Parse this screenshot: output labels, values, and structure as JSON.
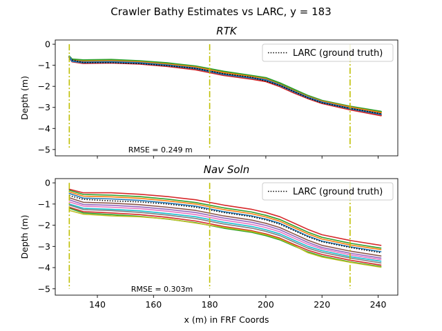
{
  "suptitle": "Crawler Bathy Estimates vs LARC, y = 183",
  "chart_data": [
    {
      "type": "line",
      "title": "RTK",
      "xlabel": "",
      "ylabel": "Depth (m)",
      "xlim": [
        125,
        247
      ],
      "ylim": [
        -5.3,
        0.2
      ],
      "xticks": [
        140,
        160,
        180,
        200,
        220,
        240
      ],
      "yticks": [
        0,
        -1,
        -2,
        -3,
        -4,
        -5
      ],
      "xtick_labels_visible": false,
      "vertical_lines": [
        130,
        180,
        230
      ],
      "vertical_line_range": [
        -5,
        0
      ],
      "vertical_line_color": "#bfbf00",
      "annotation": {
        "text": "RMSE = 0.249 m",
        "x": 151,
        "y": -5.0
      },
      "legend": {
        "entries": [
          "LARC (ground truth)"
        ],
        "position": "upper right"
      },
      "ground_truth": {
        "name": "LARC (ground truth)",
        "x": [
          131,
          135,
          145,
          155,
          165,
          175,
          185,
          195,
          200,
          205,
          210,
          215,
          220,
          230,
          241
        ],
        "y": [
          -0.75,
          -0.87,
          -0.88,
          -0.92,
          -1.02,
          -1.15,
          -1.4,
          -1.57,
          -1.75,
          -1.95,
          -2.25,
          -2.55,
          -2.78,
          -3.05,
          -3.3
        ]
      },
      "series": [
        {
          "color": "#2ca02c",
          "x": [
            130,
            131,
            135,
            145,
            155,
            165,
            175,
            185,
            195,
            200,
            205,
            210,
            215,
            220,
            230,
            241
          ],
          "y": [
            -0.58,
            -0.72,
            -0.76,
            -0.74,
            -0.8,
            -0.9,
            -1.05,
            -1.3,
            -1.5,
            -1.6,
            -1.85,
            -2.15,
            -2.45,
            -2.68,
            -2.96,
            -3.2
          ]
        },
        {
          "color": "#ff7f0e",
          "x": [
            130,
            131,
            135,
            145,
            155,
            165,
            175,
            185,
            195,
            200,
            205,
            210,
            215,
            220,
            230,
            241
          ],
          "y": [
            -0.6,
            -0.78,
            -0.82,
            -0.8,
            -0.85,
            -0.96,
            -1.1,
            -1.36,
            -1.55,
            -1.66,
            -1.92,
            -2.22,
            -2.5,
            -2.72,
            -3.0,
            -3.26
          ]
        },
        {
          "color": "#d62728",
          "x": [
            130,
            131,
            135,
            145,
            155,
            165,
            175,
            185,
            195,
            200,
            205,
            210,
            215,
            220,
            230,
            241
          ],
          "y": [
            -0.62,
            -0.82,
            -0.9,
            -0.88,
            -0.93,
            -1.04,
            -1.2,
            -1.47,
            -1.65,
            -1.76,
            -2.0,
            -2.3,
            -2.57,
            -2.8,
            -3.1,
            -3.38
          ]
        },
        {
          "color": "#1f77b4",
          "x": [
            130,
            131,
            135,
            145,
            155,
            165,
            175,
            185,
            195,
            200,
            205,
            210,
            215,
            220,
            230,
            241
          ],
          "y": [
            -0.6,
            -0.8,
            -0.86,
            -0.84,
            -0.89,
            -1.0,
            -1.15,
            -1.42,
            -1.6,
            -1.7,
            -1.95,
            -2.25,
            -2.53,
            -2.76,
            -3.05,
            -3.32
          ]
        }
      ]
    },
    {
      "type": "line",
      "title": "Nav Soln",
      "xlabel": "x (m) in FRF Coords",
      "ylabel": "Depth (m)",
      "xlim": [
        125,
        247
      ],
      "ylim": [
        -5.3,
        0.2
      ],
      "xticks": [
        140,
        160,
        180,
        200,
        220,
        240
      ],
      "yticks": [
        0,
        -1,
        -2,
        -3,
        -4,
        -5
      ],
      "xtick_labels_visible": true,
      "vertical_lines": [
        130,
        180,
        230
      ],
      "vertical_line_range": [
        -5,
        0
      ],
      "vertical_line_color": "#bfbf00",
      "annotation": {
        "text": "RMSE = 0.303m",
        "x": 152,
        "y": -5.0
      },
      "legend": {
        "entries": [
          "LARC (ground truth)"
        ],
        "position": "upper right"
      },
      "ground_truth": {
        "name": "LARC (ground truth)",
        "x": [
          130,
          135,
          145,
          155,
          165,
          175,
          185,
          195,
          200,
          205,
          210,
          215,
          220,
          230,
          241
        ],
        "y": [
          -0.6,
          -0.78,
          -0.85,
          -0.9,
          -1.0,
          -1.15,
          -1.4,
          -1.6,
          -1.75,
          -1.95,
          -2.25,
          -2.55,
          -2.78,
          -3.05,
          -3.3
        ]
      },
      "series": [
        {
          "color": "#d62728",
          "x": [
            130,
            135,
            145,
            155,
            165,
            175,
            185,
            195,
            200,
            205,
            210,
            215,
            220,
            230,
            241
          ],
          "y": [
            -0.3,
            -0.47,
            -0.47,
            -0.54,
            -0.65,
            -0.8,
            -1.05,
            -1.25,
            -1.4,
            -1.6,
            -1.9,
            -2.2,
            -2.45,
            -2.72,
            -2.95
          ]
        },
        {
          "color": "#2ca02c",
          "x": [
            130,
            135,
            145,
            155,
            165,
            175,
            185,
            195,
            200,
            205,
            210,
            215,
            220,
            230,
            241
          ],
          "y": [
            -0.35,
            -0.55,
            -0.58,
            -0.65,
            -0.77,
            -0.93,
            -1.18,
            -1.38,
            -1.53,
            -1.73,
            -2.03,
            -2.33,
            -2.57,
            -2.85,
            -3.08
          ]
        },
        {
          "color": "#ff7f0e",
          "x": [
            130,
            135,
            145,
            155,
            165,
            175,
            185,
            195,
            200,
            205,
            210,
            215,
            220,
            230,
            241
          ],
          "y": [
            -0.42,
            -0.63,
            -0.66,
            -0.73,
            -0.85,
            -1.0,
            -1.26,
            -1.46,
            -1.61,
            -1.81,
            -2.11,
            -2.41,
            -2.65,
            -2.93,
            -3.15
          ]
        },
        {
          "color": "#1f77b4",
          "x": [
            130,
            135,
            145,
            155,
            165,
            175,
            185,
            195,
            200,
            205,
            210,
            215,
            220,
            230,
            241
          ],
          "y": [
            -0.5,
            -0.72,
            -0.76,
            -0.83,
            -0.95,
            -1.1,
            -1.36,
            -1.56,
            -1.71,
            -1.91,
            -2.21,
            -2.51,
            -2.75,
            -3.02,
            -3.25
          ]
        },
        {
          "color": "#8c564b",
          "x": [
            130,
            135,
            145,
            155,
            165,
            175,
            185,
            195,
            200,
            205,
            210,
            215,
            220,
            230,
            241
          ],
          "y": [
            -0.7,
            -0.92,
            -0.96,
            -1.03,
            -1.15,
            -1.3,
            -1.56,
            -1.76,
            -1.91,
            -2.11,
            -2.41,
            -2.71,
            -2.95,
            -3.22,
            -3.45
          ]
        },
        {
          "color": "#9467bd",
          "x": [
            130,
            135,
            145,
            155,
            165,
            175,
            185,
            195,
            200,
            205,
            210,
            215,
            220,
            230,
            241
          ],
          "y": [
            -0.8,
            -1.02,
            -1.06,
            -1.13,
            -1.25,
            -1.4,
            -1.66,
            -1.86,
            -2.01,
            -2.21,
            -2.51,
            -2.81,
            -3.05,
            -3.32,
            -3.55
          ]
        },
        {
          "color": "#e377c2",
          "x": [
            130,
            135,
            145,
            155,
            165,
            175,
            185,
            195,
            200,
            205,
            210,
            215,
            220,
            230,
            241
          ],
          "y": [
            -0.9,
            -1.1,
            -1.15,
            -1.22,
            -1.34,
            -1.5,
            -1.76,
            -1.96,
            -2.11,
            -2.31,
            -2.61,
            -2.9,
            -3.12,
            -3.4,
            -3.62
          ]
        },
        {
          "color": "#17becf",
          "x": [
            130,
            135,
            145,
            155,
            165,
            175,
            185,
            195,
            200,
            205,
            210,
            215,
            220,
            230,
            241
          ],
          "y": [
            -1.0,
            -1.2,
            -1.25,
            -1.32,
            -1.45,
            -1.6,
            -1.86,
            -2.06,
            -2.21,
            -2.41,
            -2.71,
            -3.0,
            -3.2,
            -3.48,
            -3.7
          ]
        },
        {
          "color": "#7f7f7f",
          "x": [
            130,
            135,
            145,
            155,
            165,
            175,
            185,
            195,
            200,
            205,
            210,
            215,
            220,
            230,
            241
          ],
          "y": [
            -1.05,
            -1.26,
            -1.31,
            -1.39,
            -1.52,
            -1.68,
            -1.94,
            -2.14,
            -2.29,
            -2.49,
            -2.79,
            -3.08,
            -3.28,
            -3.55,
            -3.78
          ]
        },
        {
          "color": "#d62728",
          "x": [
            130,
            135,
            145,
            155,
            165,
            175,
            185,
            195,
            200,
            205,
            210,
            215,
            220,
            230,
            241
          ],
          "y": [
            -1.15,
            -1.36,
            -1.42,
            -1.5,
            -1.63,
            -1.8,
            -2.06,
            -2.26,
            -2.41,
            -2.61,
            -2.9,
            -3.18,
            -3.38,
            -3.65,
            -3.88
          ]
        },
        {
          "color": "#2ca02c",
          "x": [
            130,
            135,
            145,
            155,
            165,
            175,
            185,
            195,
            200,
            205,
            210,
            215,
            220,
            230,
            241
          ],
          "y": [
            -1.2,
            -1.42,
            -1.5,
            -1.58,
            -1.71,
            -1.88,
            -2.14,
            -2.34,
            -2.49,
            -2.69,
            -2.98,
            -3.26,
            -3.46,
            -3.73,
            -3.95
          ]
        },
        {
          "color": "#bcbd22",
          "x": [
            130,
            135,
            145,
            155,
            165,
            175,
            185,
            195,
            200,
            205,
            210,
            215,
            220,
            230,
            241
          ],
          "y": [
            -1.3,
            -1.48,
            -1.56,
            -1.6,
            -1.7,
            -1.9,
            -2.1,
            -2.3,
            -2.45,
            -2.65,
            -2.95,
            -3.3,
            -3.5,
            -3.75,
            -3.98
          ]
        }
      ]
    }
  ]
}
